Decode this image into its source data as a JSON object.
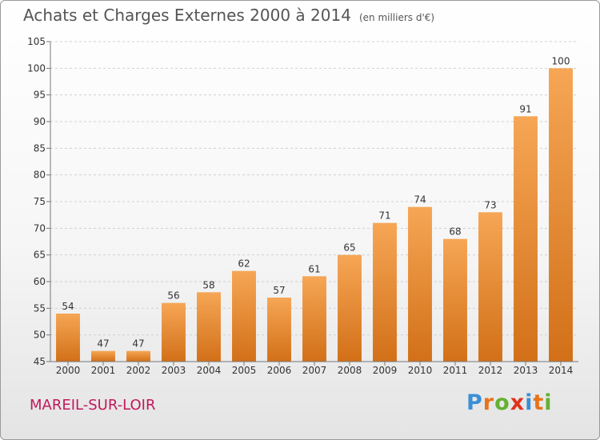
{
  "title": "Achats et Charges Externes 2000 à 2014",
  "subtitle": "(en milliers d'€)",
  "commune": "MAREIL-SUR-LOIR",
  "logo": {
    "letters": [
      "P",
      "r",
      "o",
      "x",
      "i",
      "t",
      "i"
    ],
    "colors": [
      "#3a8fd6",
      "#e8731a",
      "#63b132",
      "#e0321c",
      "#3a8fd6",
      "#e8731a",
      "#63b132"
    ]
  },
  "colors": {
    "bar_light": "#f6a655",
    "bar_dark": "#d27018",
    "grid": "#cfcfcf",
    "axis": "#777777"
  },
  "chart_data": {
    "type": "bar",
    "title": "Achats et Charges Externes 2000 à 2014",
    "subtitle": "(en milliers d'€)",
    "categories": [
      "2000",
      "2001",
      "2002",
      "2003",
      "2004",
      "2005",
      "2006",
      "2007",
      "2008",
      "2009",
      "2010",
      "2011",
      "2012",
      "2013",
      "2014"
    ],
    "values": [
      54,
      47,
      47,
      56,
      58,
      62,
      57,
      61,
      65,
      71,
      74,
      68,
      73,
      91,
      100
    ],
    "ylim": [
      45,
      105
    ],
    "yticks": [
      45,
      50,
      55,
      60,
      65,
      70,
      75,
      80,
      85,
      90,
      95,
      100,
      105
    ],
    "grid": true,
    "xlabel": "",
    "ylabel": ""
  }
}
